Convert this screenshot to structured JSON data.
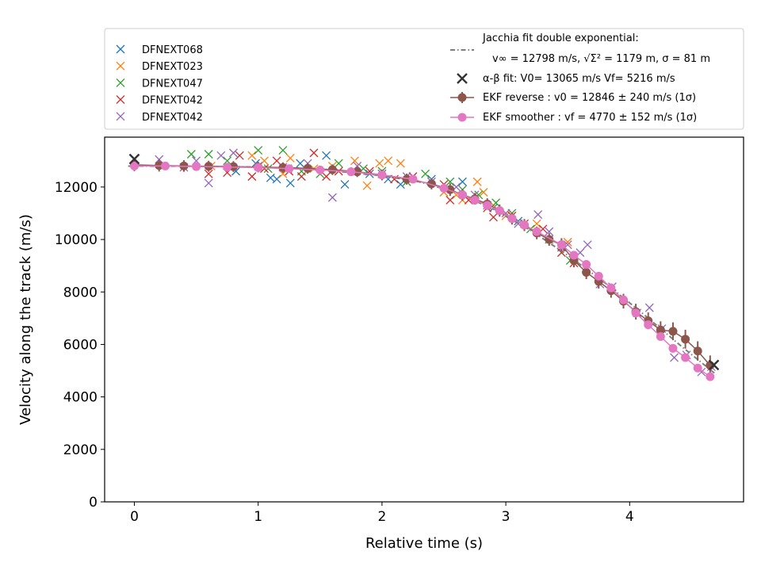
{
  "chart_data": {
    "type": "scatter",
    "xlabel": "Relative time (s)",
    "ylabel": "Velocity along the track (m/s)",
    "xlim": [
      -0.24,
      4.92
    ],
    "ylim": [
      0,
      13900
    ],
    "x_ticks": [
      0,
      1,
      2,
      3,
      4
    ],
    "y_ticks": [
      0,
      2000,
      4000,
      6000,
      8000,
      10000,
      12000
    ],
    "grid": false,
    "legend_placement": "above plot",
    "camera_series": [
      {
        "name": "DFNEXT068",
        "color": "#1f77b4",
        "points": [
          [
            0.82,
            12600
          ],
          [
            0.98,
            12900
          ],
          [
            1.1,
            12350
          ],
          [
            1.15,
            12300
          ],
          [
            1.24,
            12700
          ],
          [
            1.26,
            12150
          ],
          [
            1.34,
            12900
          ],
          [
            1.55,
            13200
          ],
          [
            1.7,
            12100
          ],
          [
            1.78,
            12600
          ],
          [
            1.9,
            12500
          ],
          [
            2.05,
            12300
          ],
          [
            2.15,
            12100
          ],
          [
            2.4,
            12300
          ],
          [
            2.65,
            12200
          ],
          [
            2.9,
            11200
          ],
          [
            3.1,
            10700
          ],
          [
            3.45,
            9700
          ]
        ]
      },
      {
        "name": "DFNEXT023",
        "color": "#ff7f0e",
        "points": [
          [
            0.62,
            12800
          ],
          [
            0.95,
            13200
          ],
          [
            1.05,
            13000
          ],
          [
            1.2,
            12500
          ],
          [
            1.26,
            13100
          ],
          [
            1.45,
            12700
          ],
          [
            1.6,
            12800
          ],
          [
            1.78,
            13000
          ],
          [
            1.88,
            12050
          ],
          [
            1.98,
            12900
          ],
          [
            2.05,
            13000
          ],
          [
            2.15,
            12900
          ],
          [
            2.5,
            11800
          ],
          [
            2.6,
            11700
          ],
          [
            2.65,
            11500
          ],
          [
            2.77,
            12200
          ],
          [
            2.82,
            11800
          ],
          [
            2.9,
            11300
          ],
          [
            3.0,
            10900
          ],
          [
            3.25,
            10600
          ],
          [
            3.5,
            9900
          ]
        ]
      },
      {
        "name": "DFNEXT047",
        "color": "#2ca02c",
        "points": [
          [
            0.46,
            13250
          ],
          [
            0.6,
            13250
          ],
          [
            0.75,
            13000
          ],
          [
            1.0,
            13400
          ],
          [
            1.08,
            12700
          ],
          [
            1.2,
            13400
          ],
          [
            1.35,
            12600
          ],
          [
            1.5,
            12500
          ],
          [
            1.65,
            12900
          ],
          [
            1.85,
            12700
          ],
          [
            2.0,
            12600
          ],
          [
            2.2,
            12200
          ],
          [
            2.35,
            12500
          ],
          [
            2.55,
            12200
          ],
          [
            2.65,
            11900
          ],
          [
            2.78,
            11700
          ],
          [
            2.92,
            11400
          ],
          [
            3.05,
            11000
          ],
          [
            3.2,
            10400
          ],
          [
            3.35,
            10000
          ],
          [
            3.52,
            9200
          ]
        ]
      },
      {
        "name": "DFNEXT042",
        "color": "#d62728",
        "points": [
          [
            0.6,
            12500
          ],
          [
            0.75,
            12550
          ],
          [
            0.85,
            13200
          ],
          [
            0.95,
            12400
          ],
          [
            1.05,
            12700
          ],
          [
            1.15,
            13000
          ],
          [
            1.25,
            12600
          ],
          [
            1.35,
            12400
          ],
          [
            1.45,
            13300
          ],
          [
            1.55,
            12400
          ],
          [
            1.65,
            12600
          ],
          [
            1.9,
            12600
          ],
          [
            2.0,
            12500
          ],
          [
            2.1,
            12300
          ],
          [
            2.25,
            12400
          ],
          [
            2.5,
            12100
          ],
          [
            2.55,
            11500
          ],
          [
            2.7,
            11500
          ],
          [
            2.85,
            11200
          ],
          [
            2.9,
            10850
          ],
          [
            3.05,
            10900
          ],
          [
            3.15,
            10600
          ],
          [
            3.3,
            10400
          ],
          [
            3.45,
            9500
          ],
          [
            3.55,
            9100
          ]
        ]
      },
      {
        "name": "DFNEXT042",
        "color": "#9467bd",
        "points": [
          [
            0.2,
            13050
          ],
          [
            0.4,
            12750
          ],
          [
            0.5,
            13000
          ],
          [
            0.6,
            12150
          ],
          [
            0.7,
            13200
          ],
          [
            0.8,
            13300
          ],
          [
            1.0,
            12800
          ],
          [
            1.2,
            12750
          ],
          [
            1.4,
            12900
          ],
          [
            1.6,
            11600
          ],
          [
            1.8,
            12800
          ],
          [
            2.0,
            12500
          ],
          [
            2.2,
            12400
          ],
          [
            2.4,
            12200
          ],
          [
            2.6,
            12000
          ],
          [
            2.75,
            11700
          ],
          [
            2.85,
            11300
          ],
          [
            3.0,
            11000
          ],
          [
            3.1,
            10600
          ],
          [
            3.26,
            10950
          ],
          [
            3.35,
            10300
          ],
          [
            3.5,
            9800
          ],
          [
            3.6,
            9500
          ],
          [
            3.66,
            9800
          ],
          [
            3.76,
            8300
          ],
          [
            3.86,
            8200
          ],
          [
            4.06,
            7200
          ],
          [
            4.16,
            7400
          ],
          [
            4.26,
            6600
          ],
          [
            4.36,
            5500
          ],
          [
            4.46,
            5600
          ],
          [
            4.58,
            4950
          ],
          [
            4.66,
            5150
          ]
        ]
      }
    ],
    "jacchia_fit": {
      "name_line1": "Jacchia fit double exponential:",
      "name_line2": "v∞ = 12798 m/s, √Σ² = 1179 m, σ = 81 m",
      "color": "#7f7f7f",
      "points": [
        [
          -0.05,
          12798
        ],
        [
          0.5,
          12790
        ],
        [
          1.0,
          12760
        ],
        [
          1.5,
          12660
        ],
        [
          2.0,
          12430
        ],
        [
          2.3,
          12200
        ],
        [
          2.6,
          11800
        ],
        [
          2.9,
          11150
        ],
        [
          3.2,
          10350
        ],
        [
          3.5,
          9400
        ],
        [
          3.8,
          8350
        ],
        [
          4.1,
          7200
        ],
        [
          4.4,
          6000
        ],
        [
          4.7,
          4850
        ]
      ]
    },
    "alpha_beta_fit": {
      "name": "α-β fit: V0= 13065 m/s   Vf= 5216 m/s",
      "color": "#333333",
      "points": [
        [
          0.0,
          13065
        ],
        [
          4.68,
          5216
        ]
      ]
    },
    "ekf_reverse": {
      "name": "EKF reverse : v0 =  12846 ± 240 m/s (1σ)",
      "color": "#8c564b",
      "points": [
        [
          0.0,
          12846,
          240
        ],
        [
          0.2,
          12820,
          230
        ],
        [
          0.4,
          12800,
          220
        ],
        [
          0.6,
          12790,
          210
        ],
        [
          0.8,
          12780,
          205
        ],
        [
          1.0,
          12760,
          200
        ],
        [
          1.2,
          12740,
          200
        ],
        [
          1.4,
          12710,
          200
        ],
        [
          1.6,
          12660,
          200
        ],
        [
          1.8,
          12580,
          200
        ],
        [
          2.0,
          12460,
          205
        ],
        [
          2.2,
          12300,
          210
        ],
        [
          2.4,
          12120,
          210
        ],
        [
          2.55,
          11900,
          240
        ],
        [
          2.65,
          11700,
          220
        ],
        [
          2.75,
          11550,
          220
        ],
        [
          2.85,
          11350,
          220
        ],
        [
          2.95,
          11100,
          230
        ],
        [
          3.05,
          10800,
          230
        ],
        [
          3.15,
          10550,
          230
        ],
        [
          3.25,
          10250,
          240
        ],
        [
          3.35,
          10000,
          240
        ],
        [
          3.45,
          9800,
          250
        ],
        [
          3.55,
          9200,
          260
        ],
        [
          3.65,
          8750,
          260
        ],
        [
          3.75,
          8400,
          270
        ],
        [
          3.85,
          8050,
          270
        ],
        [
          3.95,
          7650,
          280
        ],
        [
          4.05,
          7250,
          300
        ],
        [
          4.15,
          6900,
          320
        ],
        [
          4.25,
          6550,
          330
        ],
        [
          4.35,
          6500,
          340
        ],
        [
          4.45,
          6200,
          360
        ],
        [
          4.55,
          5750,
          370
        ],
        [
          4.65,
          5200,
          380
        ]
      ]
    },
    "ekf_smoother": {
      "name": "EKF smoother : vf =  4770 ± 152 m/s (1σ)",
      "color": "#e377c2",
      "points": [
        [
          0.0,
          12800
        ],
        [
          0.25,
          12800
        ],
        [
          0.5,
          12780
        ],
        [
          0.75,
          12760
        ],
        [
          1.0,
          12740
        ],
        [
          1.25,
          12700
        ],
        [
          1.5,
          12650
        ],
        [
          1.75,
          12580
        ],
        [
          2.0,
          12460
        ],
        [
          2.25,
          12300
        ],
        [
          2.5,
          11950
        ],
        [
          2.65,
          11700
        ],
        [
          2.75,
          11500
        ],
        [
          2.85,
          11300
        ],
        [
          2.95,
          11100
        ],
        [
          3.05,
          10800
        ],
        [
          3.15,
          10550
        ],
        [
          3.25,
          10300
        ],
        [
          3.45,
          9800
        ],
        [
          3.55,
          9400
        ],
        [
          3.65,
          9050
        ],
        [
          3.75,
          8600
        ],
        [
          3.85,
          8150
        ],
        [
          3.95,
          7700
        ],
        [
          4.05,
          7200
        ],
        [
          4.15,
          6750
        ],
        [
          4.25,
          6300
        ],
        [
          4.35,
          5850
        ],
        [
          4.45,
          5500
        ],
        [
          4.55,
          5100
        ],
        [
          4.65,
          4770
        ]
      ]
    }
  }
}
